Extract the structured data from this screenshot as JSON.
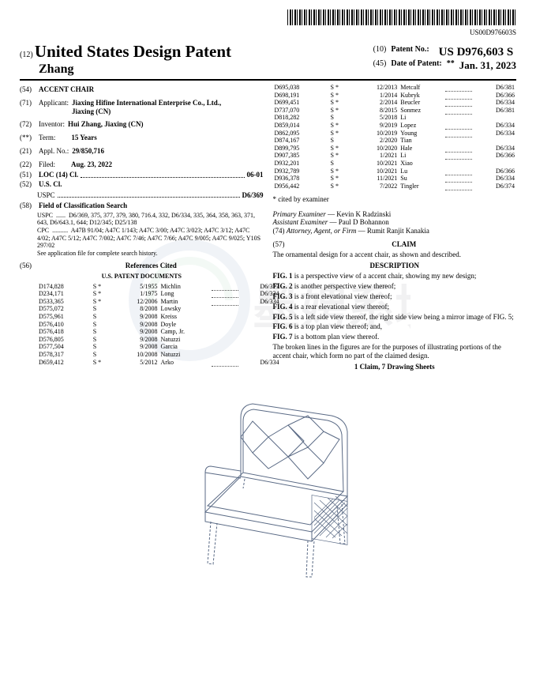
{
  "barcode_text": "US00D976603S",
  "header": {
    "prefix": "(12)",
    "title": "United States Design Patent",
    "inventor_line": "Zhang",
    "patno_prefix": "(10)",
    "patno_label": "Patent No.:",
    "patno_value": "US D976,603 S",
    "date_prefix": "(45)",
    "date_label": "Date of Patent:",
    "date_mark": "**",
    "date_value": "Jan. 31, 2023"
  },
  "left": {
    "f54_num": "(54)",
    "f54_label": "ACCENT CHAIR",
    "f71_num": "(71)",
    "f71_label": "Applicant:",
    "f71_val": "Jiaxing Hifine International Enterprise Co., Ltd., Jiaxing (CN)",
    "f72_num": "(72)",
    "f72_label": "Inventor:",
    "f72_val": "Hui Zhang, Jiaxing (CN)",
    "fterm_num": "(**)",
    "fterm_label": "Term:",
    "fterm_val": "15 Years",
    "f21_num": "(21)",
    "f21_label": "Appl. No.:",
    "f21_val": "29/850,716",
    "f22_num": "(22)",
    "f22_label": "Filed:",
    "f22_val": "Aug. 23, 2022",
    "f51_num": "(51)",
    "f51_label": "LOC (14) Cl.",
    "f51_val": "06-01",
    "f52_num": "(52)",
    "f52_label": "U.S. Cl.",
    "f52_sub": "USPC",
    "f52_val": "D6/369",
    "f58_num": "(58)",
    "f58_label": "Field of Classification Search",
    "f58_uspc_label": "USPC",
    "f58_uspc_val": "D6/369, 375, 377, 379, 380, 716.4, 332, D6/334, 335, 364, 358, 363, 371, 643, D6/643.1, 644; D12/345; D25/138",
    "f58_cpc_label": "CPC",
    "f58_cpc_val": "A47B 91/04; A47C 1/143; A47C 3/00; A47C 3/023; A47C 3/12; A47C 4/02; A47C 5/12; A47C 7/002; A47C 7/46; A47C 7/66; A47C 9/005; A47C 9/025; Y10S 297/02",
    "f58_note": "See application file for complete search history.",
    "f56_num": "(56)",
    "f56_label": "References Cited",
    "f56_sub": "U.S. PATENT DOCUMENTS",
    "us_refs": [
      {
        "n": "D174,828",
        "s": "S *",
        "d": "5/1955",
        "a": "Michlin",
        "c": "D6/377"
      },
      {
        "n": "D234,171",
        "s": "S *",
        "d": "1/1975",
        "a": "Long",
        "c": "D6/334"
      },
      {
        "n": "D533,365",
        "s": "S *",
        "d": "12/2006",
        "a": "Martin",
        "c": "D6/334"
      },
      {
        "n": "D575,072",
        "s": "S",
        "d": "8/2008",
        "a": "Lowsky",
        "c": ""
      },
      {
        "n": "D575,961",
        "s": "S",
        "d": "9/2008",
        "a": "Kreiss",
        "c": ""
      },
      {
        "n": "D576,410",
        "s": "S",
        "d": "9/2008",
        "a": "Doyle",
        "c": ""
      },
      {
        "n": "D576,418",
        "s": "S",
        "d": "9/2008",
        "a": "Camp, Jr.",
        "c": ""
      },
      {
        "n": "D576,805",
        "s": "S",
        "d": "9/2008",
        "a": "Natuzzi",
        "c": ""
      },
      {
        "n": "D577,504",
        "s": "S",
        "d": "9/2008",
        "a": "Garcia",
        "c": ""
      },
      {
        "n": "D578,317",
        "s": "S",
        "d": "10/2008",
        "a": "Natuzzi",
        "c": ""
      },
      {
        "n": "D659,412",
        "s": "S *",
        "d": "5/2012",
        "a": "Arko",
        "c": "D6/334"
      }
    ]
  },
  "right": {
    "cont_refs": [
      {
        "n": "D695,038",
        "s": "S *",
        "d": "12/2013",
        "a": "Metcalf",
        "c": "D6/381"
      },
      {
        "n": "D698,191",
        "s": "S *",
        "d": "1/2014",
        "a": "Kubryk",
        "c": "D6/366"
      },
      {
        "n": "D699,451",
        "s": "S *",
        "d": "2/2014",
        "a": "Beucler",
        "c": "D6/334"
      },
      {
        "n": "D737,070",
        "s": "S *",
        "d": "8/2015",
        "a": "Sonmez",
        "c": "D6/381"
      },
      {
        "n": "D818,282",
        "s": "S",
        "d": "5/2018",
        "a": "Li",
        "c": ""
      },
      {
        "n": "D859,014",
        "s": "S *",
        "d": "9/2019",
        "a": "Lopez",
        "c": "D6/334"
      },
      {
        "n": "D862,095",
        "s": "S *",
        "d": "10/2019",
        "a": "Young",
        "c": "D6/334"
      },
      {
        "n": "D874,167",
        "s": "S",
        "d": "2/2020",
        "a": "Tian",
        "c": ""
      },
      {
        "n": "D899,795",
        "s": "S *",
        "d": "10/2020",
        "a": "Hale",
        "c": "D6/334"
      },
      {
        "n": "D907,385",
        "s": "S *",
        "d": "1/2021",
        "a": "Li",
        "c": "D6/366"
      },
      {
        "n": "D932,201",
        "s": "S",
        "d": "10/2021",
        "a": "Xiao",
        "c": ""
      },
      {
        "n": "D932,789",
        "s": "S *",
        "d": "10/2021",
        "a": "Lu",
        "c": "D6/366"
      },
      {
        "n": "D936,378",
        "s": "S *",
        "d": "11/2021",
        "a": "Su",
        "c": "D6/334"
      },
      {
        "n": "D956,442",
        "s": "S *",
        "d": "7/2022",
        "a": "Tingler",
        "c": "D6/374"
      }
    ],
    "cited_note": "* cited by examiner",
    "examiner_label": "Primary Examiner",
    "examiner_val": "— Kevin K Radzinski",
    "asst_label": "Assistant Examiner",
    "asst_val": "— Paul D Bohannon",
    "atty_num": "(74)",
    "atty_label": "Attorney, Agent, or Firm",
    "atty_val": "— Rumit Ranjit Kanakia",
    "f57_num": "(57)",
    "claim_title": "CLAIM",
    "claim_text": "The ornamental design for a accent chair, as shown and described.",
    "desc_title": "DESCRIPTION",
    "desc_lines": [
      "FIG. 1 is a perspective view of a accent chair, showing my new design;",
      "FIG. 2 is another perspective view thereof;",
      "FIG. 3 is a front elevational view thereof;",
      "FIG. 4 is a rear elevational view thereof;",
      "FIG. 5 is a left side view thereof, the right side view being a mirror image of FIG. 5;",
      "FIG. 6 is a top plan view thereof; and,",
      "FIG. 7 is a bottom plan view thereof.",
      "The broken lines in the figures are for the purposes of illustrating portions of the accent chair, which form no part of the claimed design."
    ],
    "sheets_line": "1 Claim, 7 Drawing Sheets"
  },
  "colors": {
    "text": "#000000",
    "bg": "#ffffff",
    "watermark": "rgba(120,120,130,0.07)"
  }
}
